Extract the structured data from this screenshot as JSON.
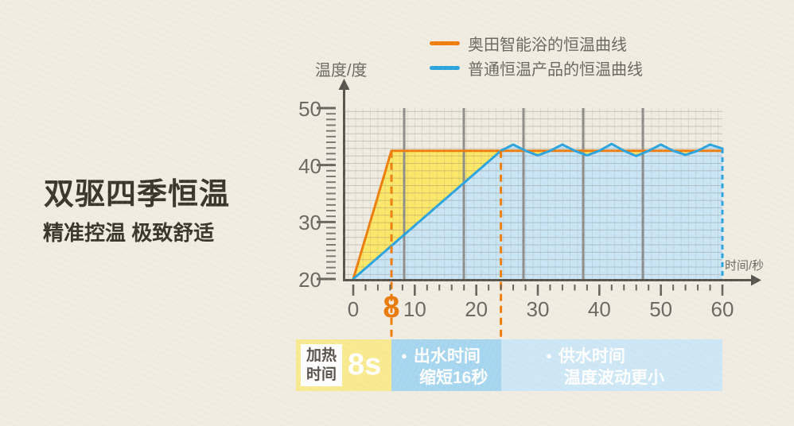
{
  "page": {
    "title_main": "双驱四季恒温",
    "title_sub": "精准控温 极致舒适"
  },
  "legend": {
    "items": [
      {
        "label": "奥田智能浴的恒温曲线",
        "color": "#ee7d0c"
      },
      {
        "label": "普通恒温产品的恒温曲线",
        "color": "#2ba3dd"
      }
    ]
  },
  "axes": {
    "y_title": "温度/度",
    "x_title": "时间/秒",
    "y_ticks": [
      50,
      40,
      30,
      20
    ],
    "x_ticks": [
      0,
      8,
      10,
      20,
      30,
      40,
      50,
      60
    ],
    "x_highlight": 8
  },
  "chart_data": {
    "type": "line",
    "xlabel": "时间/秒",
    "ylabel": "温度/度",
    "xlim": [
      0,
      60
    ],
    "ylim": [
      20,
      50
    ],
    "grid": true,
    "legend_position": "top",
    "series": [
      {
        "name": "奥田智能浴的恒温曲线",
        "color": "#ee7d0c",
        "fill": "#fbe768",
        "points": [
          [
            0,
            20
          ],
          [
            8,
            42.5
          ],
          [
            60,
            42.5
          ]
        ]
      },
      {
        "name": "普通恒温产品的恒温曲线",
        "color": "#2ba3dd",
        "fill": "#c9e5f6",
        "points": [
          [
            0,
            20
          ],
          [
            24,
            42.5
          ],
          [
            26,
            43.6
          ],
          [
            28,
            42.5
          ],
          [
            30,
            41.7
          ],
          [
            32,
            42.5
          ],
          [
            34,
            43.6
          ],
          [
            36,
            42.5
          ],
          [
            38,
            41.7
          ],
          [
            40,
            42.5
          ],
          [
            42,
            43.7
          ],
          [
            44,
            42.5
          ],
          [
            46,
            41.6
          ],
          [
            48,
            42.5
          ],
          [
            50,
            43.6
          ],
          [
            52,
            42.5
          ],
          [
            54,
            41.8
          ],
          [
            56,
            42.5
          ],
          [
            58,
            43.6
          ],
          [
            60,
            42.9
          ]
        ]
      }
    ],
    "dashed_markers_x": [
      8,
      24
    ]
  },
  "callout": {
    "heat_box": {
      "line1": "加热",
      "line2": "时间"
    },
    "heat_value": "8s",
    "bullet": "●",
    "item1": {
      "line1": "出水时间",
      "line2": "缩短16秒"
    },
    "item2": {
      "line1": "供水时间",
      "line2": "温度波动更小"
    }
  }
}
